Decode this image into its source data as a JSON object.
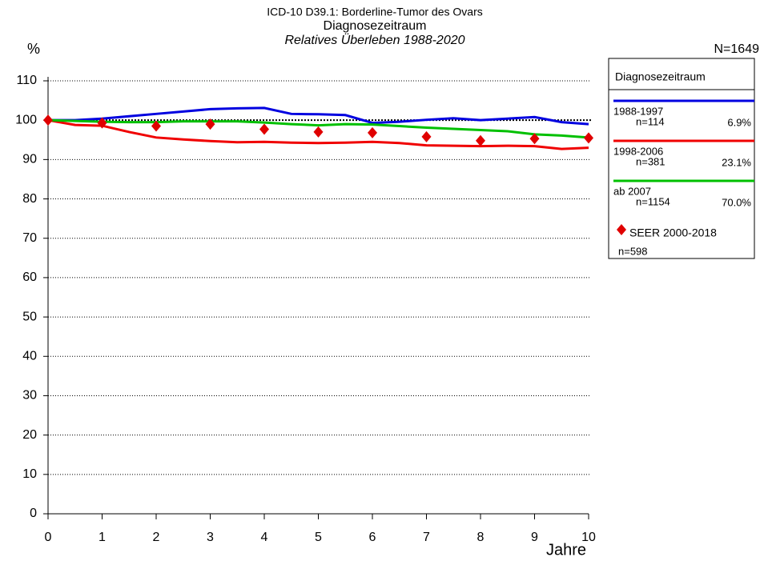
{
  "chart_data": {
    "type": "line",
    "title": "ICD-10 D39.1: Borderline-Tumor des Ovars",
    "subtitle": "Diagnosezeitraum",
    "subtitle2": "Relatives Überleben 1988-2020",
    "y_label": "%",
    "x_label": "Jahre",
    "annotation": "N=1649",
    "legend_title": "Diagnosezeitraum",
    "x": [
      0,
      0.5,
      1,
      1.5,
      2,
      2.5,
      3,
      3.5,
      4,
      4.5,
      5,
      5.5,
      6,
      6.5,
      7,
      7.5,
      8,
      8.5,
      9,
      9.5,
      10
    ],
    "series": [
      {
        "name": "1988-1997",
        "n_label": "n=114",
        "share_label": "6.9%",
        "color": "#0000e0",
        "values": [
          100,
          100,
          100.4,
          101,
          101.6,
          102.2,
          102.8,
          103,
          103.1,
          101.6,
          101.5,
          101.3,
          99.3,
          99.6,
          100.1,
          100.5,
          100,
          100.4,
          100.8,
          99.5,
          99
        ]
      },
      {
        "name": "1998-2006",
        "n_label": "n=381",
        "share_label": "23.1%",
        "color": "#f00000",
        "values": [
          100,
          98.8,
          98.6,
          97,
          95.6,
          95.1,
          94.7,
          94.4,
          94.5,
          94.3,
          94.2,
          94.3,
          94.5,
          94.2,
          93.6,
          93.5,
          93.4,
          93.5,
          93.4,
          92.7,
          93
        ]
      },
      {
        "name": "ab 2007",
        "n_label": "n=1154",
        "share_label": "70.0%",
        "color": "#00c000",
        "values": [
          100,
          99.8,
          99.6,
          99.5,
          99.5,
          99.7,
          99.7,
          99.7,
          99.4,
          99,
          98.7,
          99,
          98.9,
          98.5,
          98.1,
          97.8,
          97.5,
          97.2,
          96.4,
          96.1,
          95.6
        ]
      }
    ],
    "markers": {
      "name": "SEER 2000-2018",
      "n_label": "n=598",
      "color": "#e00000",
      "x": [
        0,
        1,
        2,
        3,
        4,
        5,
        6,
        7,
        8,
        9,
        10
      ],
      "values": [
        100,
        99.3,
        98.5,
        99,
        97.7,
        97,
        96.8,
        95.8,
        94.8,
        95.3,
        95.5
      ]
    },
    "xlim": [
      0,
      10
    ],
    "xticks": [
      0,
      1,
      2,
      3,
      4,
      5,
      6,
      7,
      8,
      9,
      10
    ],
    "ylim": [
      0,
      110
    ],
    "yticks": [
      0,
      10,
      20,
      30,
      40,
      50,
      60,
      70,
      80,
      90,
      100,
      110
    ],
    "grid": true
  }
}
